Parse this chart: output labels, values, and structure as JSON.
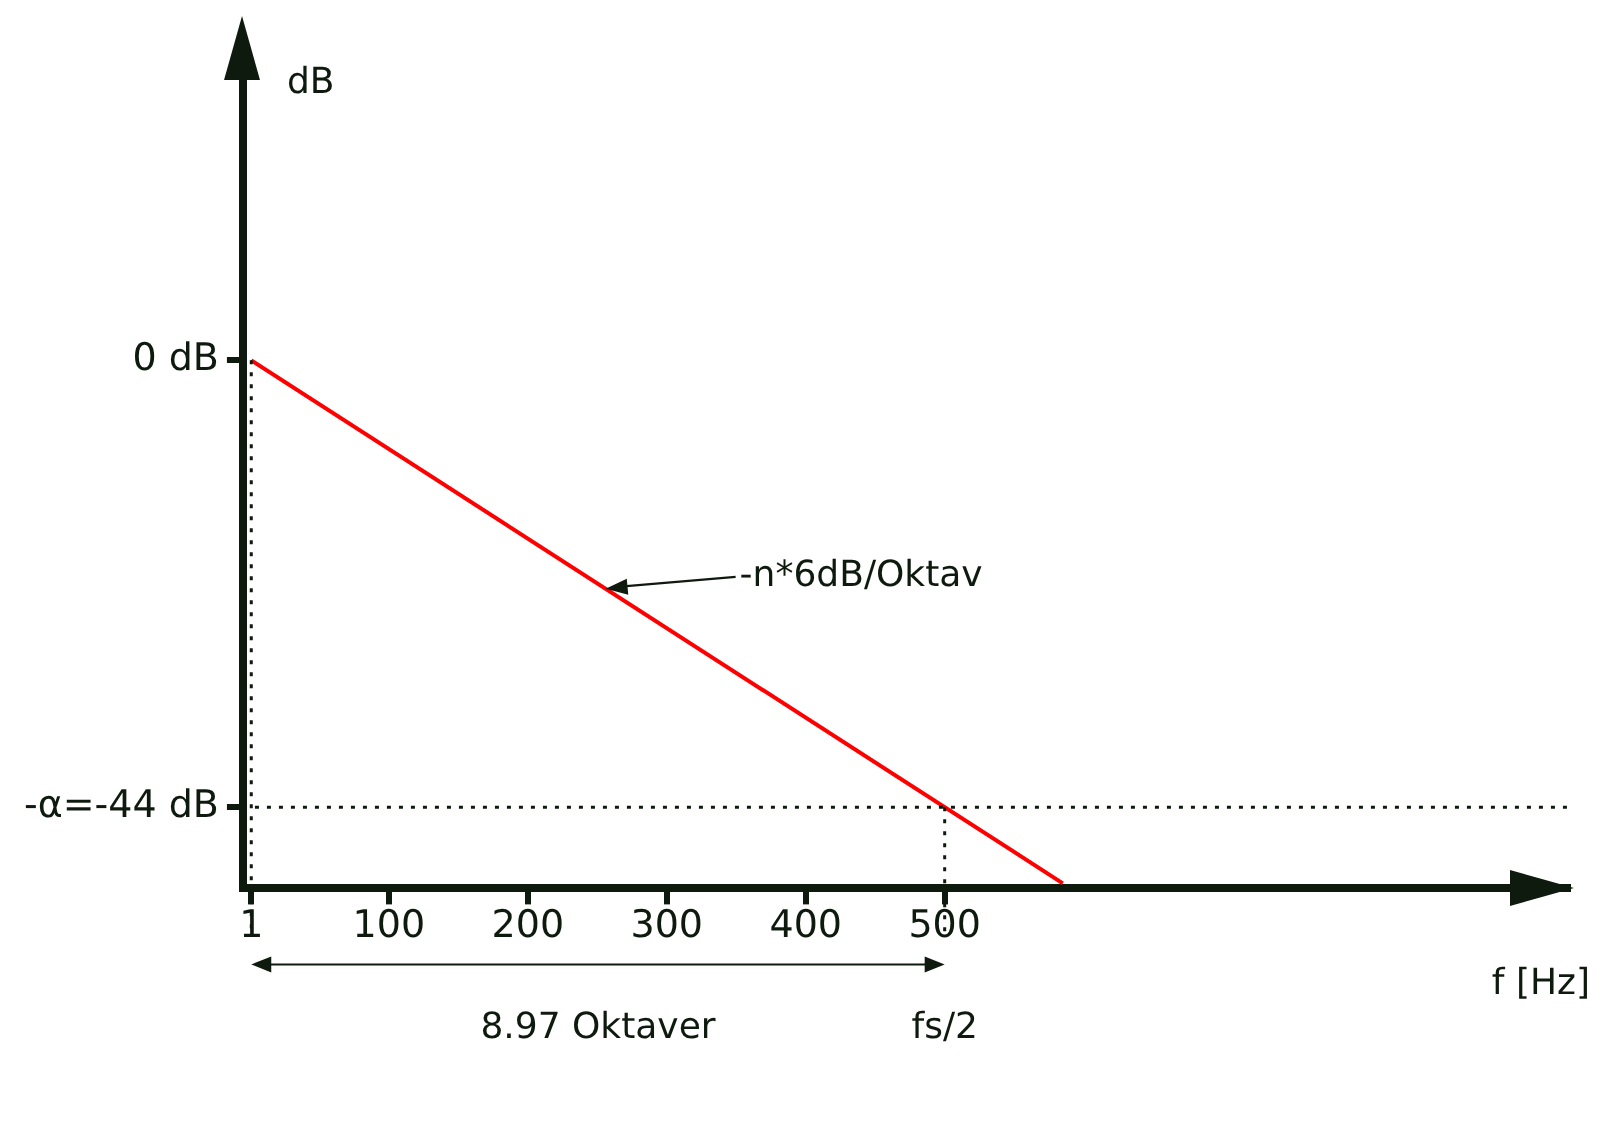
{
  "chart_data": {
    "type": "line",
    "xlabel": "f [Hz]",
    "ylabel": "dB",
    "series": [
      {
        "color": "#ff0000",
        "x": [
          1,
          585
        ],
        "values": [
          0,
          -51.5
        ]
      }
    ],
    "xlim": [
      -5,
      950
    ],
    "ylim": [
      -52,
      28
    ],
    "xticks": [
      1,
      100,
      200,
      300,
      400,
      500
    ],
    "yticks": [
      {
        "value": 0,
        "label": "0 dB"
      },
      {
        "value": -44,
        "label": "-α=-44 dB"
      }
    ],
    "ref_lines": [
      {
        "axis": "x",
        "value": 1,
        "line_style": "dotted"
      },
      {
        "axis": "x",
        "value": 500,
        "label": "fs/2",
        "line_style": "dotted"
      },
      {
        "axis": "y",
        "value": -44,
        "line_style": "dotted"
      }
    ],
    "annotations": [
      {
        "text": "-n*6dB/Oktav",
        "x": 256,
        "y": -22.5
      },
      "8.97 Oktaver"
    ],
    "grid": false,
    "legend": false
  }
}
